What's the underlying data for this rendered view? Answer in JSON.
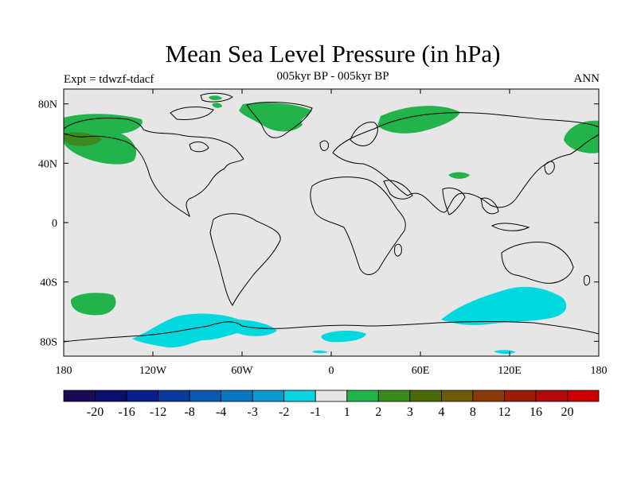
{
  "title": "Mean Sea Level Pressure (in hPa)",
  "subtitle": "005kyr BP - 005kyr BP",
  "left_label": "Expt = tdwzf-tdacf",
  "right_label": "ANN",
  "map": {
    "lon_range": [
      -180,
      180
    ],
    "lat_range": [
      -90,
      90
    ],
    "background_color": "#e6e6e6",
    "lon_ticks": [
      {
        "value": -180,
        "label": "180"
      },
      {
        "value": -120,
        "label": "120W"
      },
      {
        "value": -60,
        "label": "60W"
      },
      {
        "value": 0,
        "label": "0"
      },
      {
        "value": 60,
        "label": "60E"
      },
      {
        "value": 120,
        "label": "120E"
      },
      {
        "value": 180,
        "label": "180"
      }
    ],
    "lat_ticks": [
      {
        "value": 80,
        "label": "80N"
      },
      {
        "value": 40,
        "label": "40N"
      },
      {
        "value": 0,
        "label": "0"
      },
      {
        "value": -40,
        "label": "40S"
      },
      {
        "value": -80,
        "label": "80S"
      }
    ]
  },
  "colorbar": {
    "colors": [
      "#1a0a55",
      "#0d0d6e",
      "#0a1e8a",
      "#0a3a9c",
      "#0a58b0",
      "#0a78c0",
      "#0a9ad0",
      "#0ad4e0",
      "#e6e6e6",
      "#22b44a",
      "#3a8a1e",
      "#4a6a0a",
      "#6a5a0a",
      "#8a3a0a",
      "#9a1e0a",
      "#b00a0a",
      "#cc0000"
    ],
    "labels": [
      "-20",
      "-16",
      "-12",
      "-8",
      "-4",
      "-3",
      "-2",
      "-1",
      "1",
      "2",
      "3",
      "4",
      "8",
      "12",
      "16",
      "20"
    ]
  }
}
